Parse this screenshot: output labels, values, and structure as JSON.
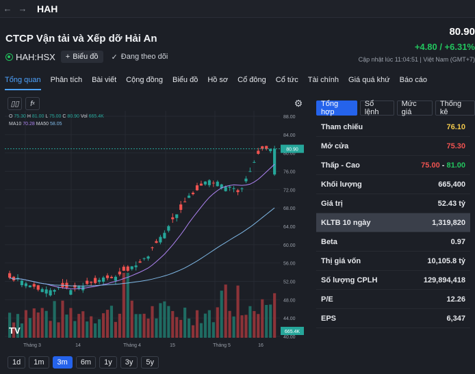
{
  "topbar": {
    "ticker": "HAH"
  },
  "header": {
    "company": "CTCP Vận tải và Xếp dỡ Hải An",
    "exchange": "HAH:HSX",
    "chart_button": "Biểu đồ",
    "follow_label": "Đang theo dõi",
    "price": "80.90",
    "change": "+4.80 / +6.31%",
    "updated": "Cập nhật lúc   11:04:51 | Việt Nam (GMT+7)"
  },
  "tabs": [
    "Tổng quan",
    "Phân tích",
    "Bài viết",
    "Cộng đồng",
    "Biểu đồ",
    "Hồ sơ",
    "Cổ đông",
    "Cổ tức",
    "Tài chính",
    "Giá quá khứ",
    "Báo cáo"
  ],
  "chart": {
    "ohlc": {
      "o": "75.30",
      "h": "81.00",
      "l": "75.00",
      "c": "80.90",
      "vol": "665.4K"
    },
    "ma": {
      "ma10_label": "MA10",
      "ma10": "70.28",
      "ma50_label": "MA50",
      "ma50": "58.05"
    },
    "last_price_tag": "80.90",
    "volume_tag": "665.4K",
    "y_ticks": [
      "88.00",
      "84.00",
      "80.00",
      "76.00",
      "72.00",
      "68.00",
      "64.00",
      "60.00",
      "56.00",
      "52.00",
      "48.00",
      "44.00",
      "40.00"
    ],
    "x_ticks": [
      "Tháng 3",
      "14",
      "Tháng 4",
      "15",
      "Tháng 5",
      "16"
    ],
    "periods": [
      "1d",
      "1m",
      "3m",
      "6m",
      "1y",
      "3y",
      "5y"
    ],
    "active_period": "3m"
  },
  "stats": {
    "tabs": [
      "Tổng hợp",
      "Sổ lệnh",
      "Mức giá",
      "Thống kê"
    ],
    "rows": [
      {
        "label": "Tham chiếu",
        "value": "76.10"
      },
      {
        "label": "Mở cửa",
        "value": "75.30"
      },
      {
        "label": "Thấp - Cao",
        "low": "75.00",
        "sep": " - ",
        "high": "81.00"
      },
      {
        "label": "Khối lượng",
        "value": "665,400"
      },
      {
        "label": "Giá trị",
        "value": "52.43 tỷ"
      },
      {
        "label": "KLTB 10 ngày",
        "value": "1,319,820"
      },
      {
        "label": "Beta",
        "value": "0.97"
      },
      {
        "label": "Thị giá vốn",
        "value": "10,105.8 tỷ"
      },
      {
        "label": "Số lượng CPLH",
        "value": "129,894,418"
      },
      {
        "label": "P/E",
        "value": "12.26"
      },
      {
        "label": "EPS",
        "value": "6,347"
      }
    ]
  },
  "colors": {
    "up": "#26a69a",
    "down": "#ef5350",
    "accent": "#2563eb",
    "ma10": "#b085f5",
    "ma50": "#7fb8e6"
  }
}
